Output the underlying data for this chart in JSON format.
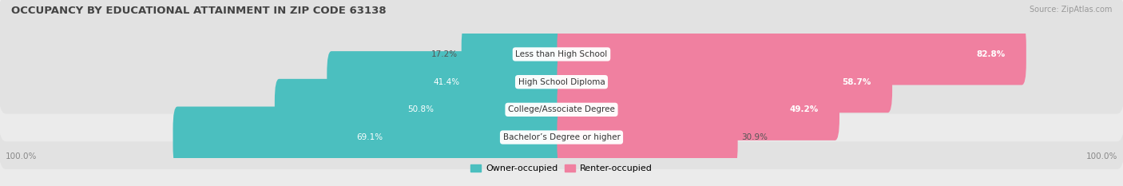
{
  "title": "OCCUPANCY BY EDUCATIONAL ATTAINMENT IN ZIP CODE 63138",
  "source": "Source: ZipAtlas.com",
  "categories": [
    "Less than High School",
    "High School Diploma",
    "College/Associate Degree",
    "Bachelor’s Degree or higher"
  ],
  "owner_pct": [
    17.2,
    41.4,
    50.8,
    69.1
  ],
  "renter_pct": [
    82.8,
    58.7,
    49.2,
    30.9
  ],
  "owner_color": "#4bbfbf",
  "renter_color": "#f080a0",
  "row_bg_colors": [
    "#ebebeb",
    "#e0e0e0"
  ],
  "bg_color": "#f2f2f2",
  "title_color": "#444444",
  "axis_label_pct": "100.0%",
  "bar_height": 0.62,
  "legend_owner": "Owner-occupied",
  "legend_renter": "Renter-occupied"
}
